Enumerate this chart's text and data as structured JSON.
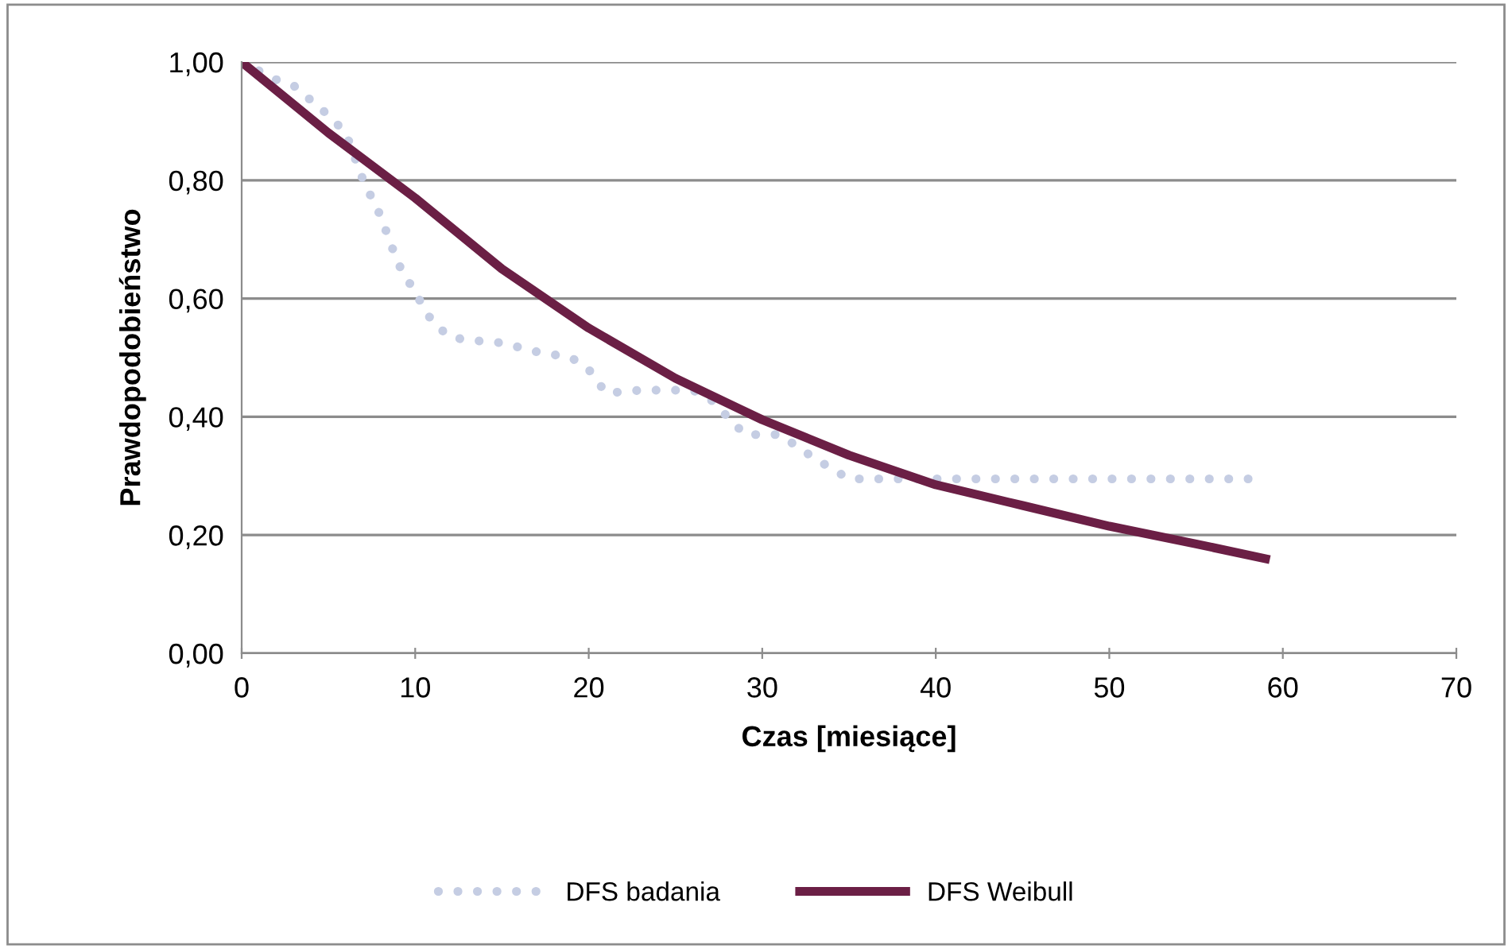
{
  "chart_data": {
    "type": "line",
    "xlabel": "Czas [miesiące]",
    "ylabel": "Prawdopodobieństwo",
    "xlim": [
      0,
      70
    ],
    "xticks": [
      0,
      10,
      20,
      30,
      40,
      50,
      60,
      70
    ],
    "ylim": [
      0,
      1
    ],
    "yticks": [
      {
        "value": 0,
        "label": "0,00"
      },
      {
        "value": 0.2,
        "label": "0,20"
      },
      {
        "value": 0.4,
        "label": "0,40"
      },
      {
        "value": 0.6,
        "label": "0,60"
      },
      {
        "value": 0.8,
        "label": "0,80"
      },
      {
        "value": 1,
        "label": "1,00"
      }
    ],
    "grid": "y",
    "legend": "bottom",
    "series": [
      {
        "name": "DFS badania",
        "color": "#c5cde3",
        "line_style": "dotted",
        "x": [
          0,
          2,
          3,
          5,
          6,
          7,
          8,
          9,
          10,
          11,
          12,
          13,
          15,
          17,
          19,
          20,
          21,
          23,
          26,
          27,
          28,
          29,
          31,
          33,
          35,
          40,
          58
        ],
        "values": [
          1.0,
          0.97,
          0.96,
          0.91,
          0.88,
          0.8,
          0.74,
          0.66,
          0.61,
          0.56,
          0.535,
          0.53,
          0.525,
          0.51,
          0.5,
          0.48,
          0.44,
          0.445,
          0.445,
          0.43,
          0.4,
          0.37,
          0.37,
          0.33,
          0.295,
          0.295,
          0.295
        ]
      },
      {
        "name": "DFS Weibull",
        "color": "#6b1f45",
        "line_style": "solid",
        "x": [
          0,
          5,
          10,
          15,
          20,
          25,
          30,
          35,
          40,
          45,
          50,
          55,
          59
        ],
        "values": [
          1.0,
          0.88,
          0.77,
          0.65,
          0.55,
          0.465,
          0.395,
          0.335,
          0.285,
          0.25,
          0.215,
          0.185,
          0.16
        ]
      }
    ]
  }
}
